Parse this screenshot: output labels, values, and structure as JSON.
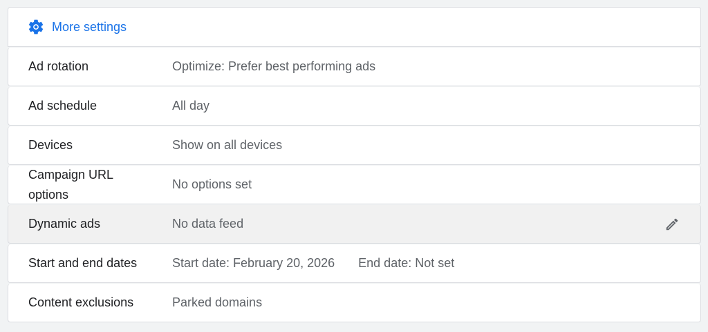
{
  "header": {
    "title": "More settings",
    "icon": "gear-icon",
    "accent": "#1a73e8"
  },
  "rows": [
    {
      "label": "Ad rotation",
      "value": "Optimize: Prefer best performing ads"
    },
    {
      "label": "Ad schedule",
      "value": "All day"
    },
    {
      "label": "Devices",
      "value": "Show on all devices"
    },
    {
      "label": "Campaign URL options",
      "value": "No options set"
    },
    {
      "label": "Dynamic ads",
      "value": "No data feed",
      "hovered": true,
      "icon": "pencil-icon"
    },
    {
      "label": "Start and end dates",
      "value": "Start date: February 20, 2026",
      "value2": "End date: Not set"
    },
    {
      "label": "Content exclusions",
      "value": "Parked domains"
    }
  ]
}
